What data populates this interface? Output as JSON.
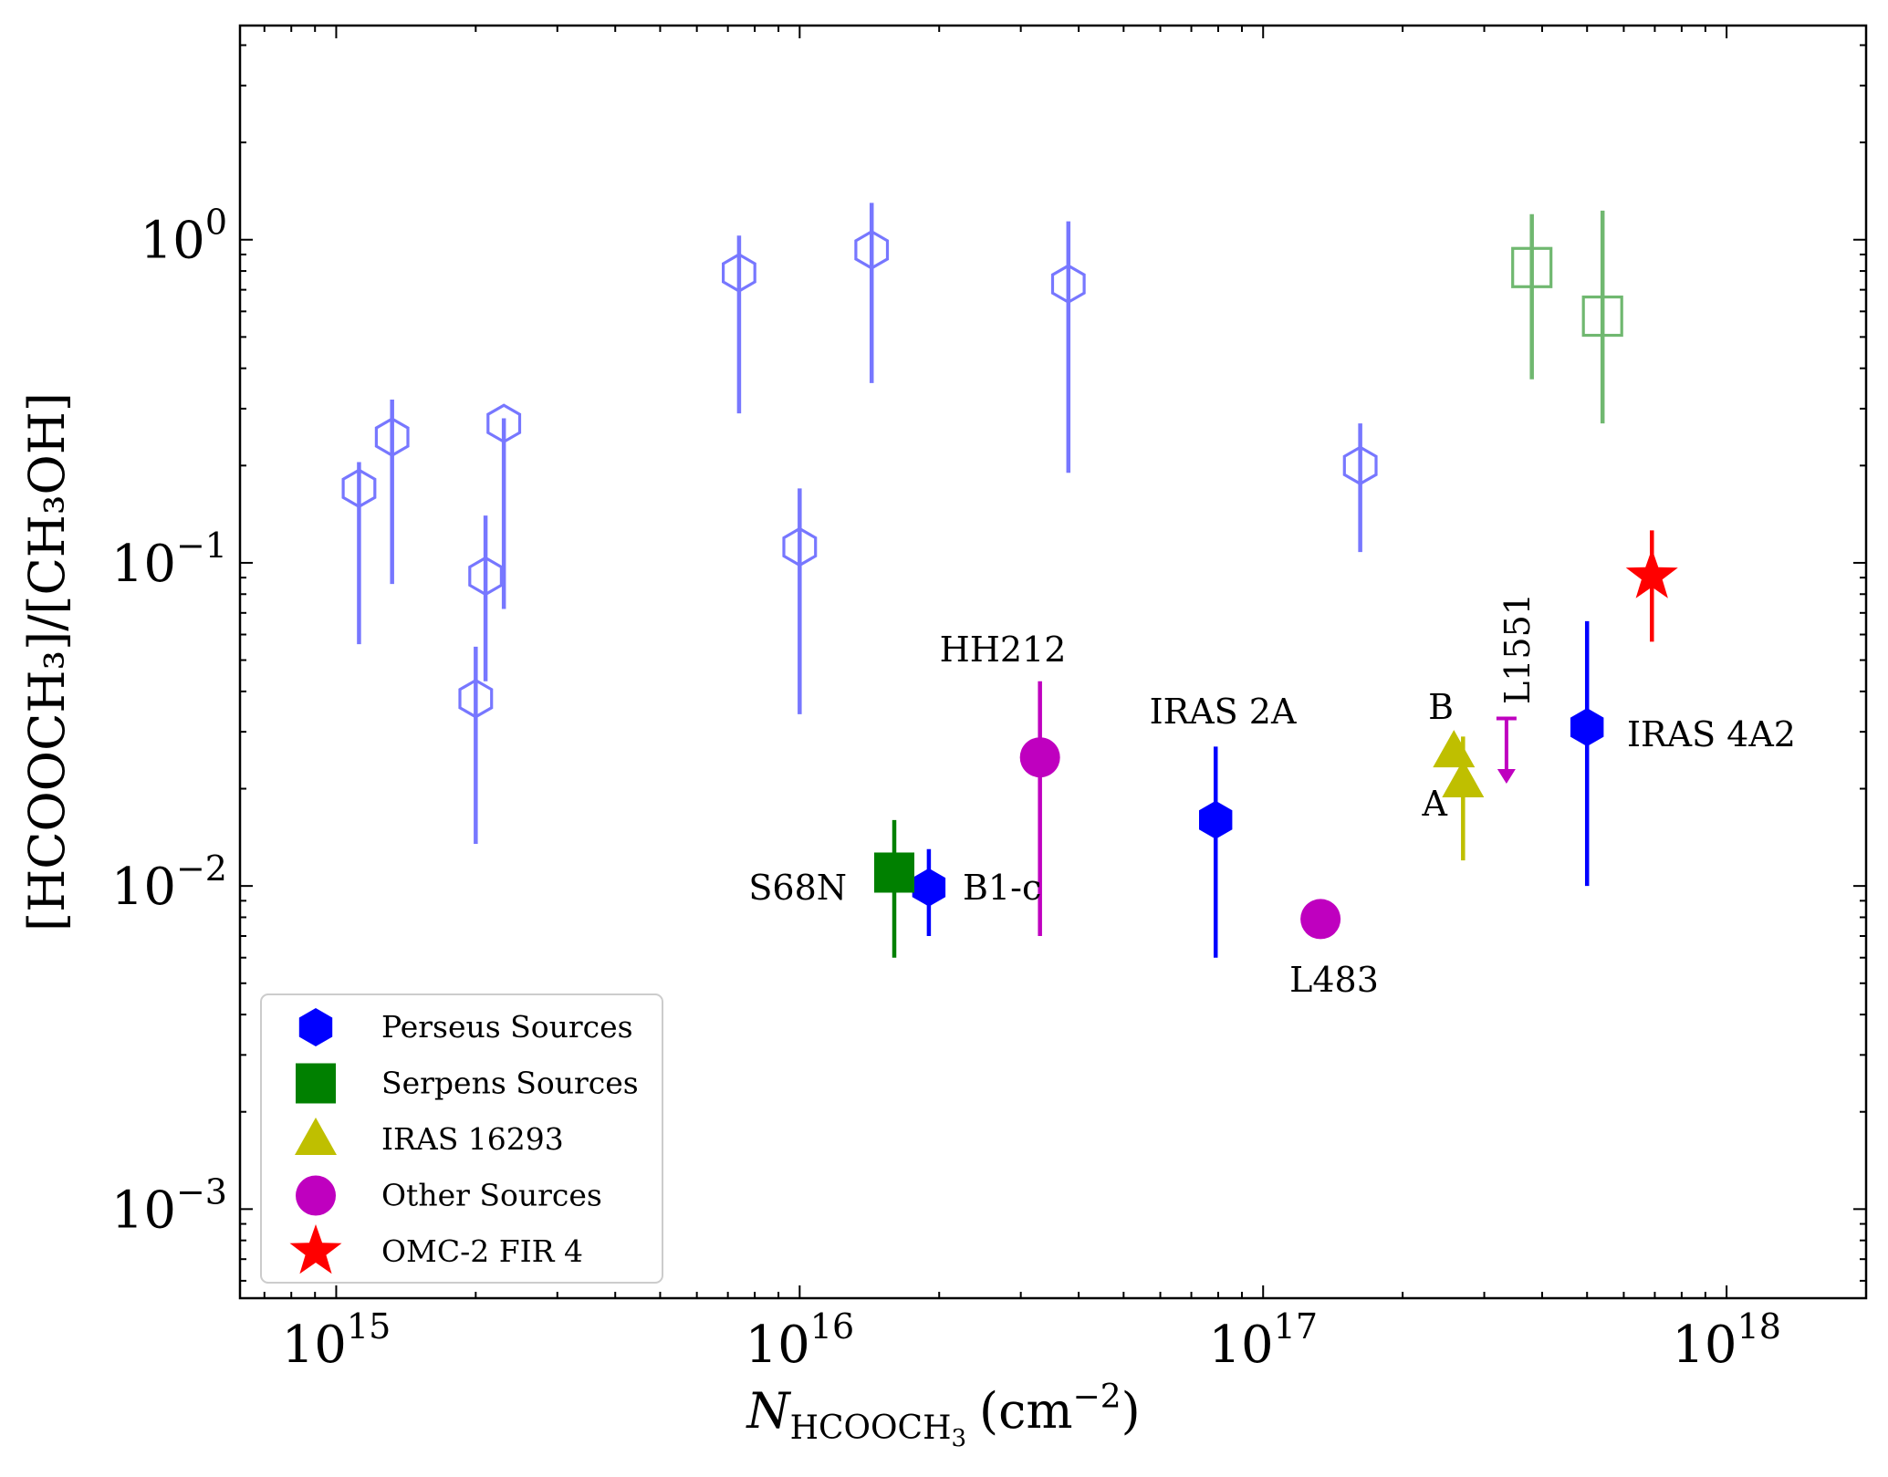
{
  "chart_data": {
    "type": "scatter",
    "xscale": "log",
    "yscale": "log",
    "xlim": [
      620000000000000.0,
      2e+18
    ],
    "ylim": [
      0.00053,
      4.6
    ],
    "xlabel": {
      "main": "N",
      "sub": "HCOOCH",
      "subsub": "3",
      "unit": "(cm",
      "unit_sup": "−2",
      "unit_close": ")"
    },
    "ylabel": {
      "text": "[HCOOCH₃]/[CH₃OH]"
    },
    "x_ticks": [
      {
        "value": 1000000000000000.0,
        "base": "10",
        "exp": "15"
      },
      {
        "value": 1e+16,
        "base": "10",
        "exp": "16"
      },
      {
        "value": 1e+17,
        "base": "10",
        "exp": "17"
      },
      {
        "value": 1e+18,
        "base": "10",
        "exp": "18"
      }
    ],
    "y_ticks": [
      {
        "value": 0.001,
        "base": "10",
        "exp": "−3"
      },
      {
        "value": 0.01,
        "base": "10",
        "exp": "−2"
      },
      {
        "value": 0.1,
        "base": "10",
        "exp": "−1"
      },
      {
        "value": 1,
        "base": "10",
        "exp": "0"
      }
    ],
    "colors": {
      "perseus": "#0000ff",
      "perseus_faint": "#7777ff",
      "serpens": "#008000",
      "serpens_faint": "#70b870",
      "iras16293": "#bfbf00",
      "other": "#bf00bf",
      "omc2": "#ff0000"
    },
    "series": [
      {
        "name": "Perseus Sources",
        "marker": "hexagon",
        "color_key": "perseus",
        "points": [
          {
            "label": "B1-c",
            "x": 1.9e+16,
            "y": 0.0099,
            "ylo": 0.007,
            "yhi": 0.013
          },
          {
            "label": "IRAS 2A",
            "x": 7.9e+16,
            "y": 0.016,
            "ylo": 0.006,
            "yhi": 0.027
          },
          {
            "label": "IRAS 4A2",
            "x": 5e+17,
            "y": 0.031,
            "ylo": 0.01,
            "yhi": 0.066
          }
        ]
      },
      {
        "name": "Perseus Sources (open)",
        "marker": "hexagon-open",
        "color_key": "perseus_faint",
        "points": [
          {
            "x": 1120000000000000.0,
            "y": 0.17,
            "ylo": 0.056,
            "yhi": 0.205
          },
          {
            "x": 1320000000000000.0,
            "y": 0.245,
            "ylo": 0.086,
            "yhi": 0.32
          },
          {
            "x": 2000000000000000.0,
            "y": 0.038,
            "ylo": 0.0135,
            "yhi": 0.055
          },
          {
            "x": 2100000000000000.0,
            "y": 0.091,
            "ylo": 0.043,
            "yhi": 0.14
          },
          {
            "x": 2300000000000000.0,
            "y": 0.27,
            "ylo": 0.072,
            "yhi": 0.28
          },
          {
            "x": 7400000000000000.0,
            "y": 0.79,
            "ylo": 0.29,
            "yhi": 1.03
          },
          {
            "x": 1e+16,
            "y": 0.112,
            "ylo": 0.034,
            "yhi": 0.17
          },
          {
            "x": 1.43e+16,
            "y": 0.93,
            "ylo": 0.36,
            "yhi": 1.3
          },
          {
            "x": 3.8e+16,
            "y": 0.73,
            "ylo": 0.19,
            "yhi": 1.14
          },
          {
            "x": 1.62e+17,
            "y": 0.2,
            "ylo": 0.108,
            "yhi": 0.27
          }
        ]
      },
      {
        "name": "Serpens Sources",
        "marker": "square",
        "color_key": "serpens",
        "points": [
          {
            "label": "S68N",
            "x": 1.6e+16,
            "y": 0.011,
            "ylo": 0.006,
            "yhi": 0.016
          }
        ]
      },
      {
        "name": "Serpens Sources (open)",
        "marker": "square-open",
        "color_key": "serpens_faint",
        "points": [
          {
            "x": 3.8e+17,
            "y": 0.82,
            "ylo": 0.37,
            "yhi": 1.2
          },
          {
            "x": 5.4e+17,
            "y": 0.58,
            "ylo": 0.27,
            "yhi": 1.23
          }
        ]
      },
      {
        "name": "IRAS 16293",
        "marker": "triangle",
        "color_key": "iras16293",
        "points": [
          {
            "label": "B",
            "x": 2.58e+17,
            "y": 0.026,
            "ylo": 0.024,
            "yhi": 0.029
          },
          {
            "label": "A",
            "x": 2.7e+17,
            "y": 0.021,
            "ylo": 0.012,
            "yhi": 0.029
          }
        ]
      },
      {
        "name": "Other Sources",
        "marker": "circle",
        "color_key": "other",
        "points": [
          {
            "label": "HH212",
            "x": 3.3e+16,
            "y": 0.025,
            "ylo": 0.007,
            "yhi": 0.043
          },
          {
            "label": "L483",
            "x": 1.33e+17,
            "y": 0.0079
          }
        ]
      },
      {
        "name": "OMC-2 FIR 4",
        "marker": "star",
        "color_key": "omc2",
        "points": [
          {
            "x": 6.9e+17,
            "y": 0.091,
            "ylo": 0.057,
            "yhi": 0.126
          }
        ]
      }
    ],
    "upper_limits": [
      {
        "label": "L1551",
        "x": 3.35e+17,
        "y": 0.033,
        "arrow_to": 0.021,
        "color_key": "other"
      }
    ],
    "annotations": [
      "HH212",
      "IRAS 2A",
      "IRAS 4A2",
      "S68N",
      "B1-c",
      "L483",
      "B",
      "A",
      "L1551"
    ],
    "legend": {
      "placement": "lower-left",
      "entries": [
        {
          "label": "Perseus Sources",
          "marker": "hexagon",
          "color_key": "perseus"
        },
        {
          "label": "Serpens Sources",
          "marker": "square",
          "color_key": "serpens"
        },
        {
          "label": "IRAS 16293",
          "marker": "triangle",
          "color_key": "iras16293"
        },
        {
          "label": "Other Sources",
          "marker": "circle",
          "color_key": "other"
        },
        {
          "label": "OMC-2 FIR 4",
          "marker": "star",
          "color_key": "omc2"
        }
      ]
    }
  }
}
